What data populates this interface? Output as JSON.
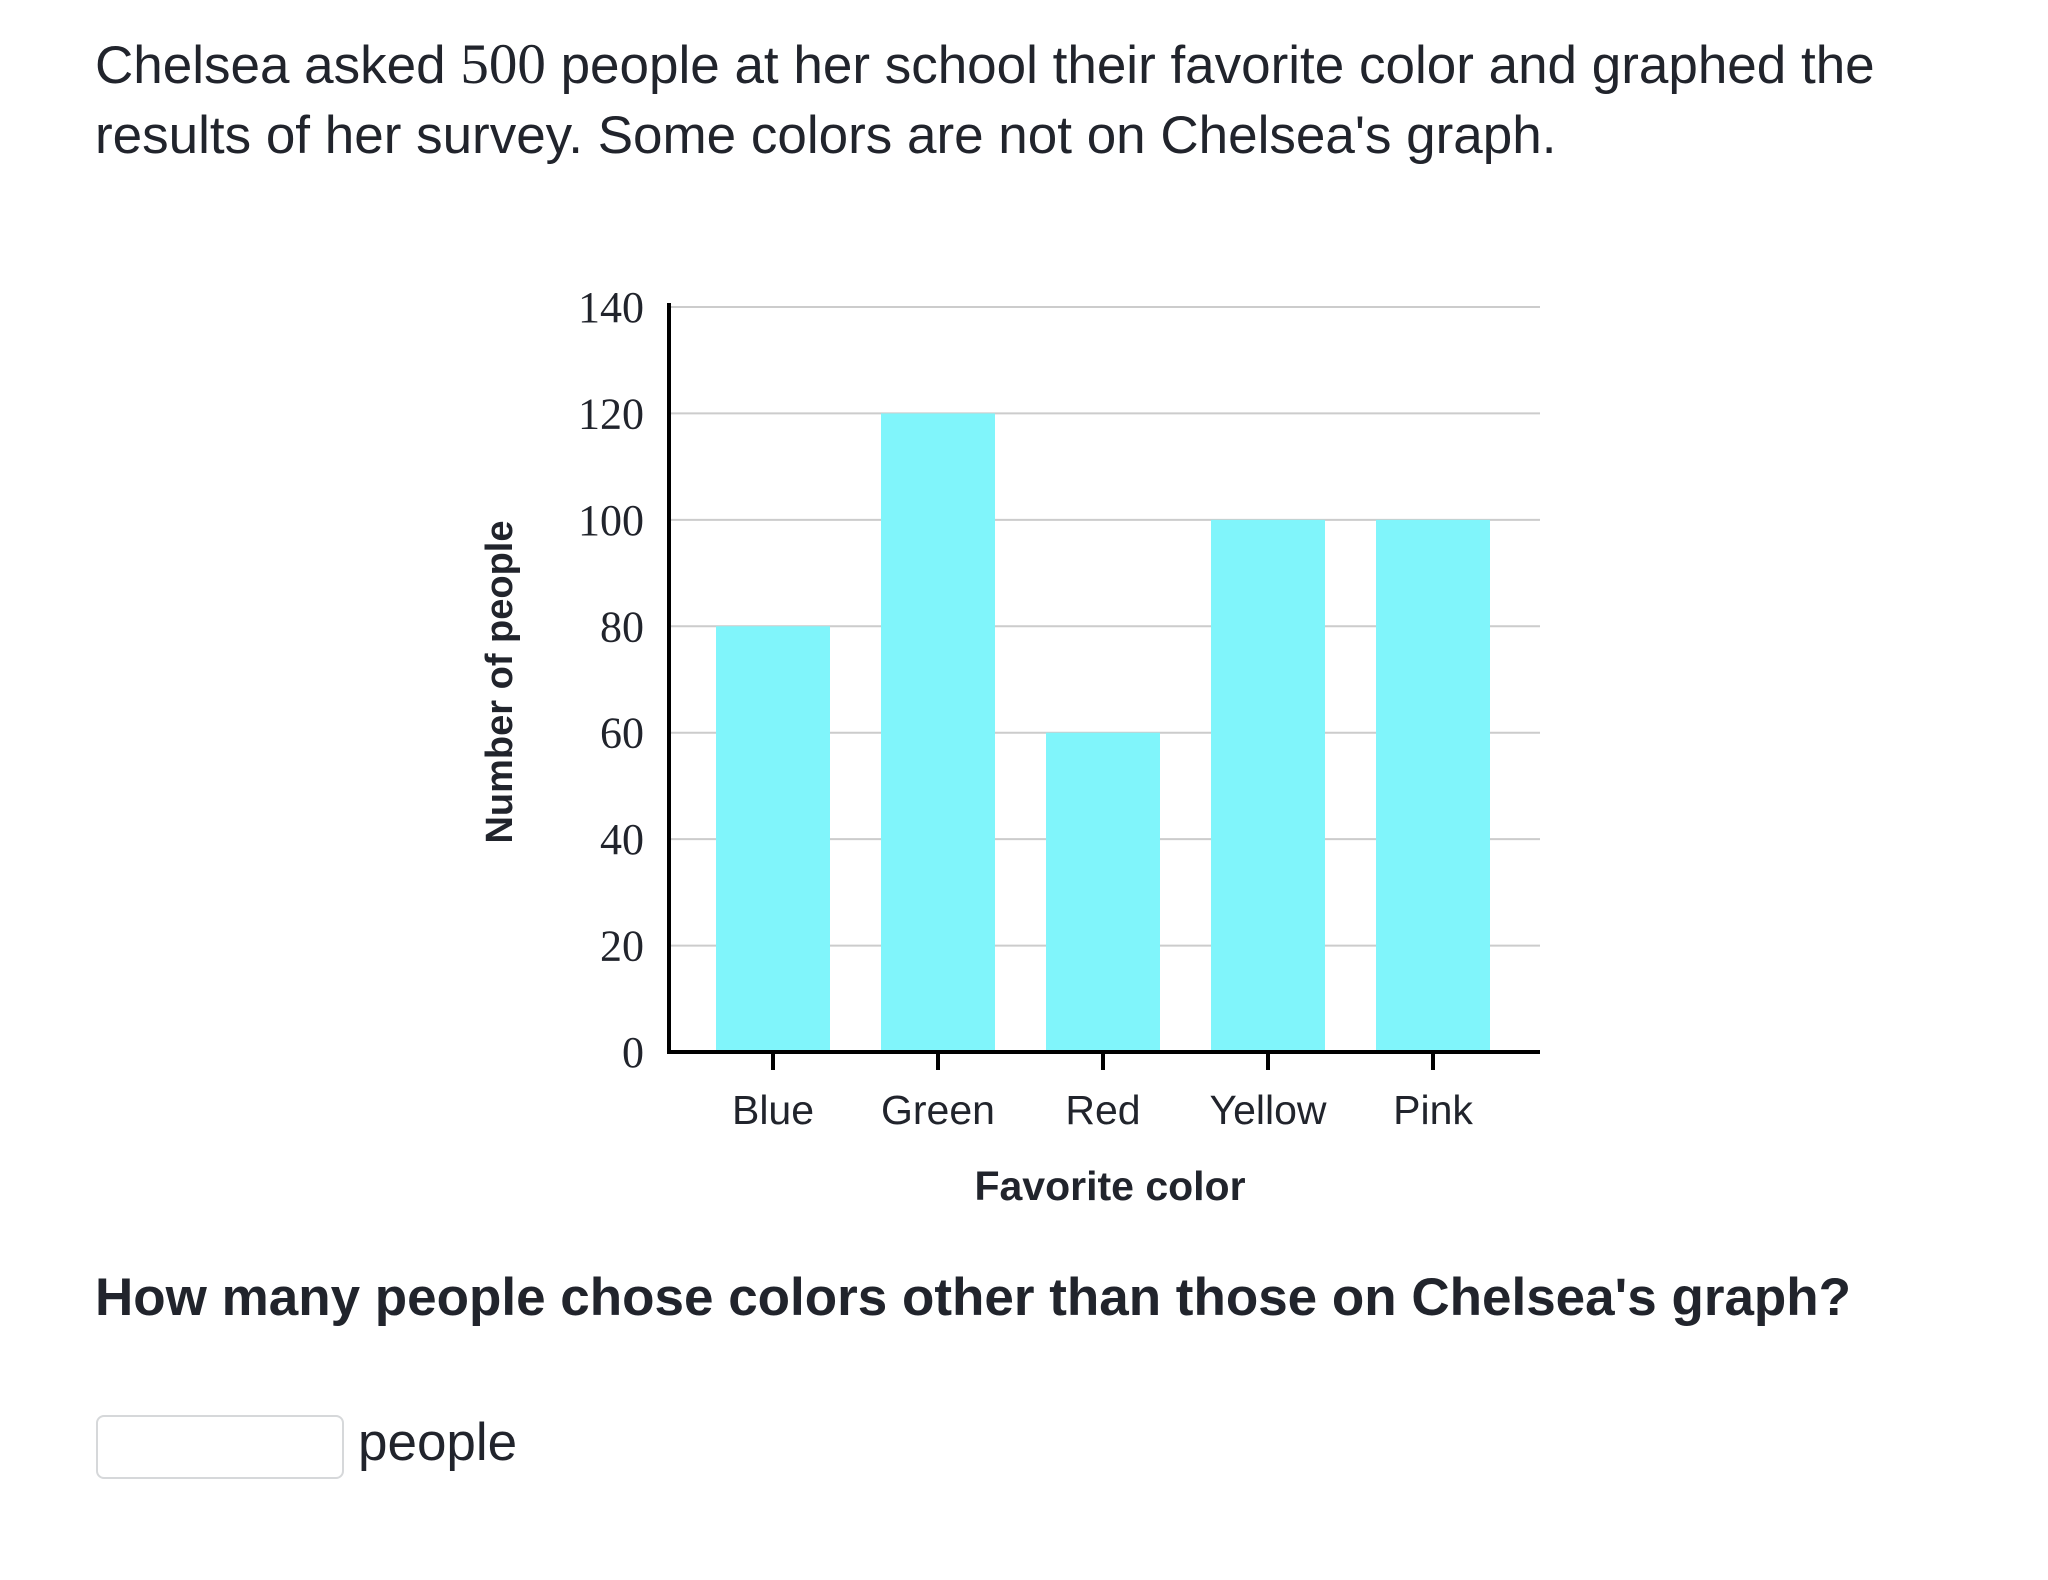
{
  "problem": {
    "text_before": "Chelsea asked ",
    "total_people": "500",
    "text_after": " people at her school their favorite color and graphed the results of her survey. Some colors are not on Chelsea's graph."
  },
  "question": "How many people chose colors other than those on Chelsea's graph?",
  "answer": {
    "value": "",
    "placeholder": "",
    "unit": "people"
  },
  "colors": {
    "bar": "#80f5fb",
    "axis": "#000000",
    "grid": "#cccccc",
    "text": "#21242c"
  },
  "chart_data": {
    "type": "bar",
    "categories": [
      "Blue",
      "Green",
      "Red",
      "Yellow",
      "Pink"
    ],
    "values": [
      80,
      120,
      60,
      100,
      100
    ],
    "title": "",
    "xlabel": "Favorite color",
    "ylabel": "Number of people",
    "ylim": [
      0,
      140
    ],
    "yticks": [
      "0",
      "20",
      "40",
      "60",
      "80",
      "100",
      "120",
      "140"
    ],
    "grid": true,
    "legend": "none"
  }
}
